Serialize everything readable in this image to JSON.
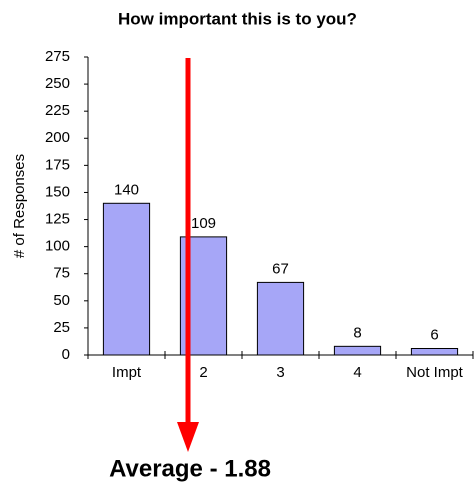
{
  "chart_data": {
    "type": "bar",
    "title": "How important this is to you?",
    "y_label": "# of Responses",
    "categories": [
      "Impt",
      "2",
      "3",
      "4",
      "Not Impt"
    ],
    "values": [
      140,
      109,
      67,
      8,
      6
    ],
    "color": "#a6a6f7",
    "ylim": [
      0,
      275
    ],
    "yticks": [
      0,
      25,
      50,
      75,
      100,
      125,
      150,
      175,
      200,
      225,
      250,
      275
    ],
    "grid": false,
    "annotation": "Average - 1.88"
  }
}
